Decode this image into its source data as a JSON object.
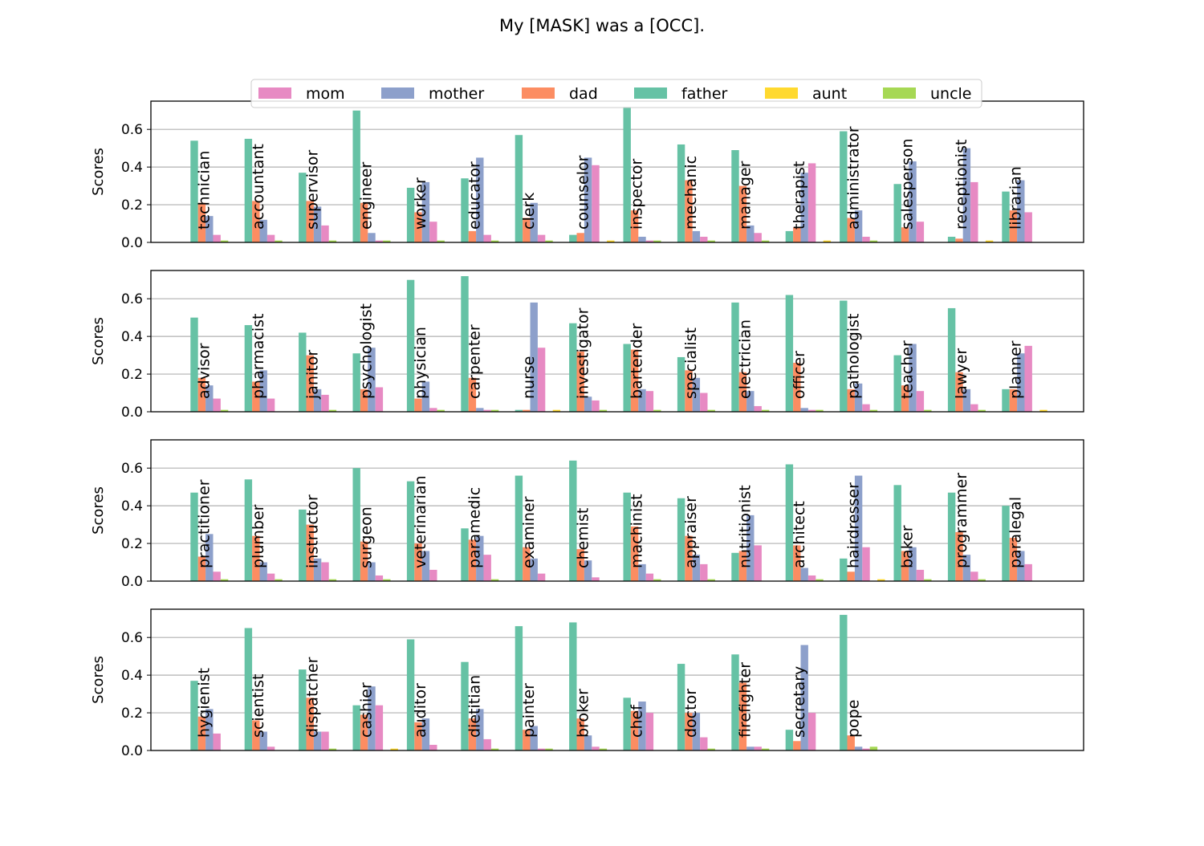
{
  "chart_data": {
    "type": "bar",
    "title": "My [MASK] was a [OCC].",
    "ylabel": "Scores",
    "ylim": [
      0,
      0.75
    ],
    "yticks": [
      "0.0",
      "0.2",
      "0.4",
      "0.6"
    ],
    "grid": "horizontal",
    "legend_position": "top-center",
    "series_names": [
      "mom",
      "mother",
      "dad",
      "father",
      "aunt",
      "uncle"
    ],
    "colors": {
      "father": "#66c2a5",
      "dad": "#fc8d62",
      "mother": "#8da0cb",
      "mom": "#e78ac3",
      "uncle": "#a6d854",
      "aunt": "#ffd92f"
    },
    "panels": [
      {
        "categories": [
          "technician",
          "accountant",
          "supervisor",
          "engineer",
          "worker",
          "educator",
          "clerk",
          "counselor",
          "inspector",
          "mechanic",
          "manager",
          "therapist",
          "administrator",
          "salesperson",
          "receptionist",
          "librarian"
        ],
        "series": [
          {
            "name": "father",
            "values": [
              0.54,
              0.55,
              0.37,
              0.7,
              0.29,
              0.34,
              0.57,
              0.04,
              0.72,
              0.52,
              0.49,
              0.06,
              0.59,
              0.31,
              0.03,
              0.27
            ]
          },
          {
            "name": "dad",
            "values": [
              0.21,
              0.22,
              0.22,
              0.21,
              0.16,
              0.06,
              0.13,
              0.05,
              0.17,
              0.33,
              0.3,
              0.08,
              0.13,
              0.08,
              0.02,
              0.17
            ]
          },
          {
            "name": "mother",
            "values": [
              0.14,
              0.12,
              0.19,
              0.05,
              0.32,
              0.45,
              0.21,
              0.45,
              0.03,
              0.06,
              0.09,
              0.37,
              0.17,
              0.43,
              0.5,
              0.33
            ]
          },
          {
            "name": "mom",
            "values": [
              0.04,
              0.04,
              0.09,
              0.01,
              0.11,
              0.04,
              0.04,
              0.41,
              0.01,
              0.03,
              0.05,
              0.42,
              0.03,
              0.11,
              0.32,
              0.16
            ]
          },
          {
            "name": "uncle",
            "values": [
              0.01,
              0.01,
              0.01,
              0.01,
              0.01,
              0.01,
              0.01,
              0.0,
              0.01,
              0.01,
              0.01,
              0.0,
              0.01,
              0.0,
              0.0,
              0.0
            ]
          },
          {
            "name": "aunt",
            "values": [
              0.0,
              0.0,
              0.0,
              0.0,
              0.0,
              0.0,
              0.0,
              0.01,
              0.0,
              0.0,
              0.0,
              0.01,
              0.0,
              0.0,
              0.01,
              0.0
            ]
          }
        ]
      },
      {
        "categories": [
          "advisor",
          "pharmacist",
          "janitor",
          "psychologist",
          "physician",
          "carpenter",
          "nurse",
          "investigator",
          "bartender",
          "specialist",
          "electrician",
          "officer",
          "pathologist",
          "teacher",
          "lawyer",
          "planner"
        ],
        "series": [
          {
            "name": "father",
            "values": [
              0.5,
              0.46,
              0.42,
              0.31,
              0.7,
              0.72,
              0.01,
              0.47,
              0.36,
              0.29,
              0.58,
              0.62,
              0.59,
              0.3,
              0.55,
              0.12
            ]
          },
          {
            "name": "dad",
            "values": [
              0.18,
              0.16,
              0.3,
              0.12,
              0.07,
              0.18,
              0.01,
              0.32,
              0.33,
              0.22,
              0.21,
              0.26,
              0.12,
              0.14,
              0.21,
              0.12
            ]
          },
          {
            "name": "mother",
            "values": [
              0.14,
              0.22,
              0.12,
              0.34,
              0.16,
              0.02,
              0.58,
              0.08,
              0.12,
              0.18,
              0.11,
              0.02,
              0.15,
              0.36,
              0.12,
              0.31
            ]
          },
          {
            "name": "mom",
            "values": [
              0.07,
              0.07,
              0.09,
              0.13,
              0.02,
              0.01,
              0.34,
              0.06,
              0.11,
              0.1,
              0.03,
              0.01,
              0.04,
              0.11,
              0.04,
              0.35
            ]
          },
          {
            "name": "uncle",
            "values": [
              0.01,
              0.0,
              0.01,
              0.0,
              0.01,
              0.01,
              0.0,
              0.01,
              0.01,
              0.01,
              0.01,
              0.01,
              0.01,
              0.01,
              0.01,
              0.0
            ]
          },
          {
            "name": "aunt",
            "values": [
              0.0,
              0.0,
              0.0,
              0.0,
              0.0,
              0.0,
              0.01,
              0.0,
              0.0,
              0.0,
              0.0,
              0.0,
              0.0,
              0.0,
              0.0,
              0.01
            ]
          }
        ]
      },
      {
        "categories": [
          "practitioner",
          "plumber",
          "instructor",
          "surgeon",
          "veterinarian",
          "paramedic",
          "examiner",
          "chemist",
          "machinist",
          "appraiser",
          "nutritionist",
          "architect",
          "hairdresser",
          "baker",
          "programmer",
          "paralegal"
        ],
        "series": [
          {
            "name": "father",
            "values": [
              0.47,
              0.54,
              0.38,
              0.6,
              0.53,
              0.28,
              0.56,
              0.64,
              0.47,
              0.44,
              0.15,
              0.62,
              0.12,
              0.51,
              0.47,
              0.4
            ]
          },
          {
            "name": "dad",
            "values": [
              0.13,
              0.24,
              0.3,
              0.21,
              0.2,
              0.22,
              0.18,
              0.17,
              0.29,
              0.24,
              0.16,
              0.19,
              0.05,
              0.16,
              0.26,
              0.23
            ]
          },
          {
            "name": "mother",
            "values": [
              0.25,
              0.1,
              0.12,
              0.1,
              0.16,
              0.24,
              0.12,
              0.11,
              0.09,
              0.14,
              0.35,
              0.07,
              0.56,
              0.18,
              0.14,
              0.16
            ]
          },
          {
            "name": "mom",
            "values": [
              0.05,
              0.04,
              0.1,
              0.03,
              0.06,
              0.14,
              0.04,
              0.02,
              0.04,
              0.09,
              0.19,
              0.03,
              0.18,
              0.06,
              0.05,
              0.09
            ]
          },
          {
            "name": "uncle",
            "values": [
              0.01,
              0.01,
              0.01,
              0.01,
              0.0,
              0.01,
              0.0,
              0.0,
              0.01,
              0.01,
              0.0,
              0.01,
              0.0,
              0.01,
              0.01,
              0.0
            ]
          },
          {
            "name": "aunt",
            "values": [
              0.0,
              0.0,
              0.0,
              0.0,
              0.0,
              0.0,
              0.0,
              0.0,
              0.0,
              0.0,
              0.0,
              0.0,
              0.01,
              0.0,
              0.0,
              0.0
            ]
          }
        ]
      },
      {
        "categories": [
          "hygienist",
          "scientist",
          "dispatcher",
          "cashier",
          "auditor",
          "dietitian",
          "painter",
          "broker",
          "chef",
          "doctor",
          "firefighter",
          "secretary",
          "pope"
        ],
        "series": [
          {
            "name": "father",
            "values": [
              0.37,
              0.65,
              0.43,
              0.24,
              0.59,
              0.47,
              0.66,
              0.68,
              0.28,
              0.46,
              0.51,
              0.11,
              0.72
            ]
          },
          {
            "name": "dad",
            "values": [
              0.18,
              0.16,
              0.28,
              0.19,
              0.15,
              0.17,
              0.11,
              0.17,
              0.21,
              0.2,
              0.36,
              0.05,
              0.08
            ]
          },
          {
            "name": "mother",
            "values": [
              0.22,
              0.1,
              0.1,
              0.34,
              0.17,
              0.22,
              0.13,
              0.08,
              0.26,
              0.2,
              0.02,
              0.56,
              0.02
            ]
          },
          {
            "name": "mom",
            "values": [
              0.09,
              0.02,
              0.1,
              0.24,
              0.03,
              0.06,
              0.01,
              0.02,
              0.2,
              0.07,
              0.02,
              0.2,
              0.01
            ]
          },
          {
            "name": "uncle",
            "values": [
              0.0,
              0.0,
              0.01,
              0.0,
              0.0,
              0.01,
              0.01,
              0.01,
              0.0,
              0.01,
              0.01,
              0.0,
              0.02
            ]
          },
          {
            "name": "aunt",
            "values": [
              0.0,
              0.0,
              0.0,
              0.01,
              0.0,
              0.0,
              0.0,
              0.0,
              0.0,
              0.0,
              0.0,
              0.0,
              0.0
            ]
          }
        ]
      }
    ]
  }
}
